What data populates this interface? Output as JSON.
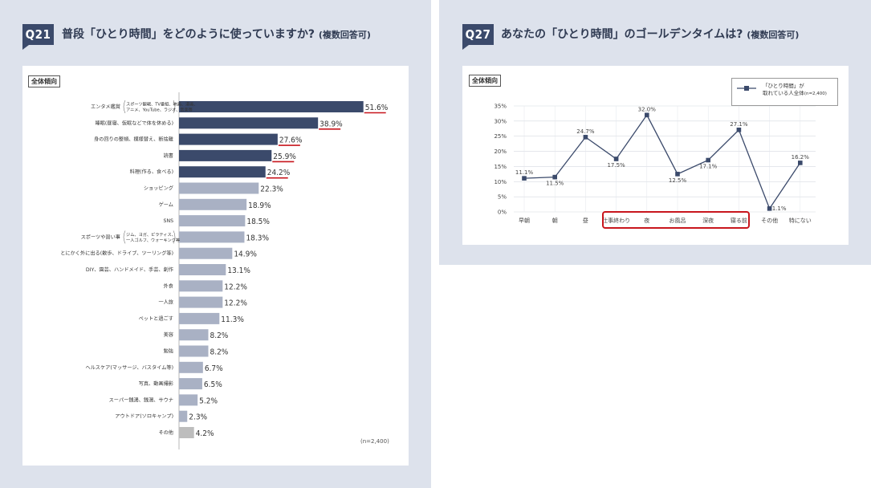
{
  "colors": {
    "panel_bg": "#dde2ec",
    "badge": "#3b4a6b",
    "bar_dark": "#3b4a6b",
    "bar_light": "#a9b1c4",
    "bar_other": "#bdbdbd",
    "underline": "#c8161d",
    "line": "#3b4a6b",
    "highlight": "#c8161d"
  },
  "left": {
    "badge": "Q21",
    "title": "普段「ひとり時間」をどのように使っていますか?",
    "title_sub": "(複数回答可)",
    "tag": "全体傾向",
    "note": "(n=2,400)"
  },
  "right": {
    "badge": "Q27",
    "title": "あなたの「ひとり時間」のゴールデンタイムは?",
    "title_sub": "(複数回答可)",
    "tag": "全体傾向",
    "legend_line1": "「ひとり時間」が",
    "legend_line2": "取れている人全体",
    "legend_n": "(n=2,400)"
  },
  "chart_data": [
    {
      "type": "bar",
      "orientation": "horizontal",
      "categories": [
        "エンタメ鑑賞",
        "睡眠(昼寝、仮眠などで体を休める)",
        "身の回りの整頓、模様替え、断捨離",
        "読書",
        "料理(作る、食べる)",
        "ショッピング",
        "ゲーム",
        "SNS",
        "スポーツや習い事",
        "とにかく外に出る(散歩、ドライブ、ツーリング等)",
        "DIY、園芸、ハンドメイド、手芸、創作",
        "外食",
        "一人旅",
        "ペットと過ごす",
        "美容",
        "勉強",
        "ヘルスケア(マッサージ、バスタイム等)",
        "写真、動画撮影",
        "スーパー銭湯、銭湯、サウナ",
        "アウトドア(ソロキャンプ)",
        "その他"
      ],
      "category_notes": {
        "エンタメ鑑賞": [
          "スポーツ観戦、TV番組、映画、漫画、",
          "アニメ、YouTube、ラジオ、音楽等"
        ],
        "スポーツや習い事": [
          "ジム、ヨガ、ピラティス、",
          "一人ゴルフ、ウォーキング等"
        ]
      },
      "values": [
        51.6,
        38.9,
        27.6,
        25.9,
        24.2,
        22.3,
        18.9,
        18.5,
        18.3,
        14.9,
        13.1,
        12.2,
        12.2,
        11.3,
        8.2,
        8.2,
        6.7,
        6.5,
        5.2,
        2.3,
        4.2
      ],
      "value_labels": [
        "51.6%",
        "38.9%",
        "27.6%",
        "25.9%",
        "24.2%",
        "22.3%",
        "18.9%",
        "18.5%",
        "18.3%",
        "14.9%",
        "13.1%",
        "12.2%",
        "12.2%",
        "11.3%",
        "8.2%",
        "8.2%",
        "6.7%",
        "6.5%",
        "5.2%",
        "2.3%",
        "4.2%"
      ],
      "highlighted_top": 5,
      "unit": "%"
    },
    {
      "type": "line",
      "categories": [
        "早朝",
        "朝",
        "昼",
        "仕事終わり",
        "夜",
        "お風呂",
        "深夜",
        "寝る前",
        "その他",
        "特にない"
      ],
      "series": [
        {
          "name": "「ひとり時間」が取れている人全体",
          "values": [
            11.1,
            11.5,
            24.7,
            17.5,
            32.0,
            12.5,
            17.1,
            27.1,
            1.1,
            16.2
          ]
        }
      ],
      "value_labels": [
        "11.1%",
        "11.5%",
        "24.7%",
        "17.5%",
        "32.0%",
        "12.5%",
        "17.1%",
        "27.1%",
        "1.1%",
        "16.2%"
      ],
      "yticks": [
        "0%",
        "5%",
        "10%",
        "15%",
        "20%",
        "25%",
        "30%",
        "35%"
      ],
      "ylim": [
        0,
        35
      ],
      "highlighted_categories": [
        "仕事終わり",
        "夜",
        "お風呂",
        "深夜",
        "寝る前"
      ],
      "grid": true,
      "legend_position": "top-right"
    }
  ]
}
